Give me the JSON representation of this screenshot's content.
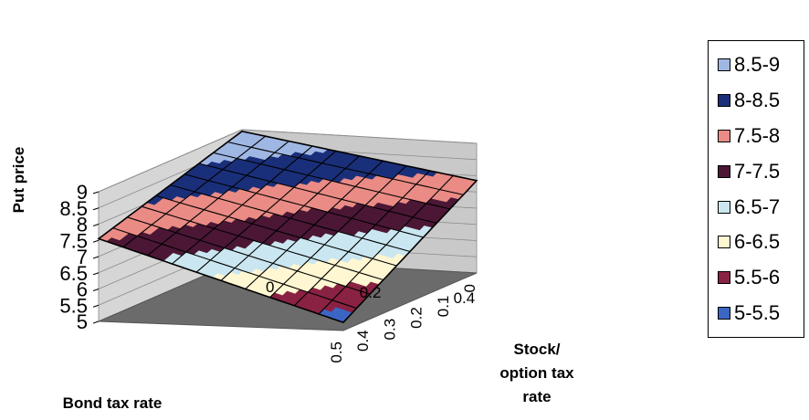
{
  "chart_data": {
    "type": "surface",
    "zlabel": "Put price",
    "xlabel": "Bond tax rate",
    "ylabel": "Stock/ option tax rate",
    "zlim": [
      5,
      9
    ],
    "z_ticks": [
      "5",
      "5.5",
      "6",
      "6.5",
      "7",
      "7.5",
      "8",
      "8.5",
      "9"
    ],
    "bond_tax_ticks": [
      "0.5",
      "0.4",
      "0.3",
      "0.2",
      "0.1",
      "0"
    ],
    "stock_option_tax_ticks": [
      "0",
      "0.2",
      "0.4"
    ],
    "surface": {
      "bond_tax_rate": [
        0,
        0.5
      ],
      "stock_option_tax_rate": [
        0,
        0.5
      ],
      "put_price_corners": {
        "bond_0_stock_0": 8.95,
        "bond_0.5_stock_0": 7.55,
        "bond_0_stock_0.5": 7.85,
        "bond_0.5_stock_0.5": 5.25
      }
    },
    "legend": [
      {
        "label": "8.5-9",
        "color": "#9fb7e3"
      },
      {
        "label": "8-8.5",
        "color": "#1a2f7a"
      },
      {
        "label": "7.5-8",
        "color": "#ea8b85"
      },
      {
        "label": "7-7.5",
        "color": "#4b1735"
      },
      {
        "label": "6.5-7",
        "color": "#cae6f0"
      },
      {
        "label": "6-6.5",
        "color": "#fff7d2"
      },
      {
        "label": "5.5-6",
        "color": "#8a2243"
      },
      {
        "label": "5-5.5",
        "color": "#3c66c4"
      }
    ]
  }
}
